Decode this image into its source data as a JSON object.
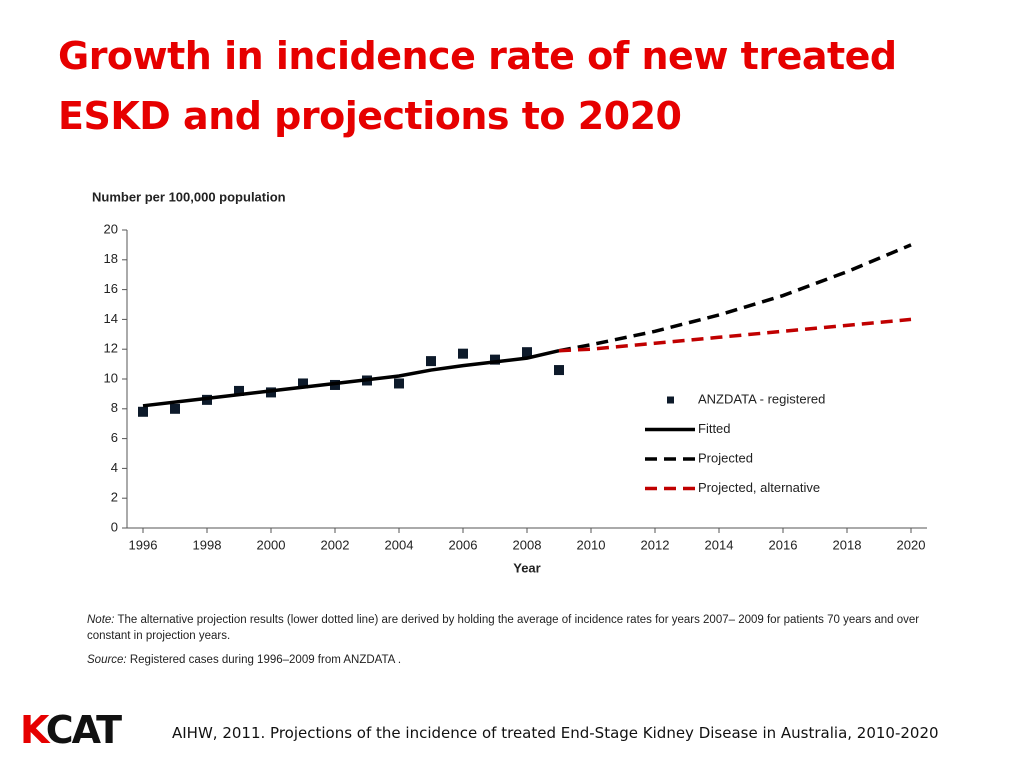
{
  "title": "Growth in incidence rate of new treated ESKD and projections to 2020",
  "chart_data": {
    "type": "line",
    "y_axis_label": "Number per 100,000 population",
    "x_axis_label": "Year",
    "xlim": [
      1995.5,
      2020.5
    ],
    "xticks": [
      1996,
      1998,
      2000,
      2002,
      2004,
      2006,
      2008,
      2010,
      2012,
      2014,
      2016,
      2018,
      2020
    ],
    "ylim": [
      0,
      20
    ],
    "yticks": [
      0,
      2,
      4,
      6,
      8,
      10,
      12,
      14,
      16,
      18,
      20
    ],
    "legend": "right",
    "series": [
      {
        "name": "ANZDATA - registered",
        "style": "marker",
        "color": "#0d1a2a",
        "x": [
          1996,
          1997,
          1998,
          1999,
          2000,
          2001,
          2002,
          2003,
          2004,
          2005,
          2006,
          2007,
          2008,
          2009
        ],
        "values": [
          7.8,
          8.0,
          8.6,
          9.2,
          9.1,
          9.7,
          9.6,
          9.9,
          9.7,
          11.2,
          11.7,
          11.3,
          11.8,
          10.6
        ]
      },
      {
        "name": "Fitted",
        "style": "solid",
        "color": "#000000",
        "x": [
          1996,
          1998,
          2000,
          2002,
          2004,
          2005,
          2006,
          2008,
          2009
        ],
        "values": [
          8.2,
          8.7,
          9.2,
          9.7,
          10.2,
          10.6,
          10.9,
          11.4,
          11.9
        ]
      },
      {
        "name": "Projected",
        "style": "dashed",
        "color": "#000000",
        "x": [
          2009,
          2010,
          2012,
          2014,
          2016,
          2018,
          2020
        ],
        "values": [
          11.9,
          12.3,
          13.2,
          14.3,
          15.6,
          17.2,
          19.0
        ]
      },
      {
        "name": "Projected, alternative",
        "style": "dashed",
        "color": "#c00000",
        "x": [
          2009,
          2010,
          2012,
          2014,
          2016,
          2018,
          2020
        ],
        "values": [
          11.9,
          12.0,
          12.4,
          12.8,
          13.2,
          13.6,
          14.0
        ]
      }
    ]
  },
  "note": {
    "label": "Note:",
    "text": "The alternative projection results (lower dotted line) are derived by holding the average of incidence rates for years 2007– 2009 for patients 70 years and over constant in projection years."
  },
  "source": {
    "label": "Source:",
    "text": "Registered cases during 1996–2009 from ANZDATA ."
  },
  "logo": "KCAT",
  "citation": "AIHW, 2011. Projections of the incidence of treated End-Stage Kidney Disease in Australia, 2010-2020"
}
